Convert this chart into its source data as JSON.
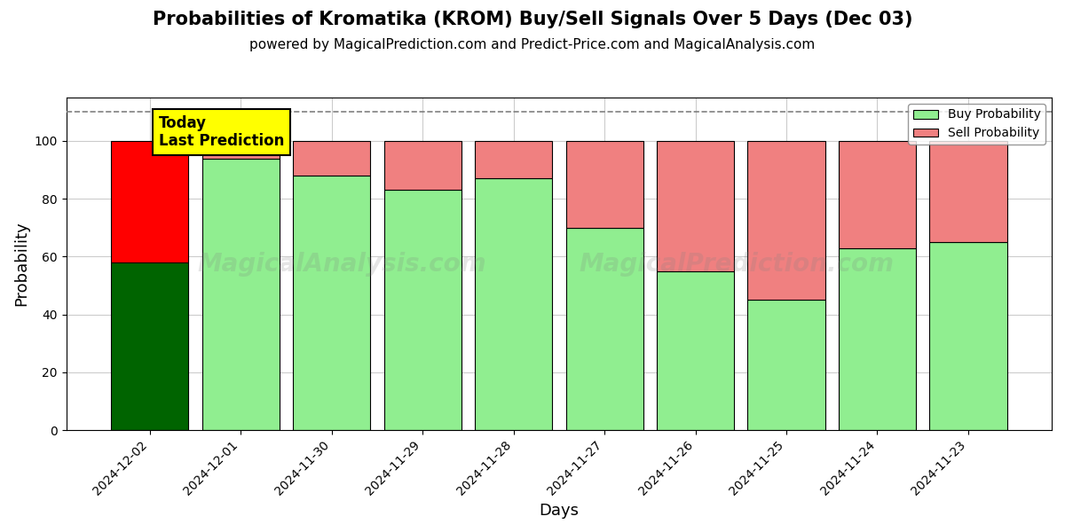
{
  "title": "Probabilities of Kromatika (KROM) Buy/Sell Signals Over 5 Days (Dec 03)",
  "subtitle": "powered by MagicalPrediction.com and Predict-Price.com and MagicalAnalysis.com",
  "xlabel": "Days",
  "ylabel": "Probability",
  "categories": [
    "2024-12-02",
    "2024-12-01",
    "2024-11-30",
    "2024-11-29",
    "2024-11-28",
    "2024-11-27",
    "2024-11-26",
    "2024-11-25",
    "2024-11-24",
    "2024-11-23"
  ],
  "buy_values": [
    58,
    94,
    88,
    83,
    87,
    70,
    55,
    45,
    63,
    65
  ],
  "sell_values": [
    42,
    6,
    12,
    17,
    13,
    30,
    45,
    55,
    37,
    35
  ],
  "buy_colors": [
    "#006400",
    "#90EE90",
    "#90EE90",
    "#90EE90",
    "#90EE90",
    "#90EE90",
    "#90EE90",
    "#90EE90",
    "#90EE90",
    "#90EE90"
  ],
  "sell_colors": [
    "#FF0000",
    "#F08080",
    "#F08080",
    "#F08080",
    "#F08080",
    "#F08080",
    "#F08080",
    "#F08080",
    "#F08080",
    "#F08080"
  ],
  "dashed_line_y": 110,
  "ylim": [
    0,
    115
  ],
  "bar_edge_color": "black",
  "bar_linewidth": 0.8,
  "grid_color": "#cccccc",
  "background_color": "#ffffff",
  "watermark_left_text": "MagicalAnalysis.com",
  "watermark_right_text": "MagicalPrediction.com",
  "today_box_text": "Today\nLast Prediction",
  "today_box_color": "#FFFF00",
  "legend_buy_color": "#90EE90",
  "legend_sell_color": "#F08080",
  "title_fontsize": 15,
  "subtitle_fontsize": 11,
  "label_fontsize": 13,
  "tick_fontsize": 10
}
